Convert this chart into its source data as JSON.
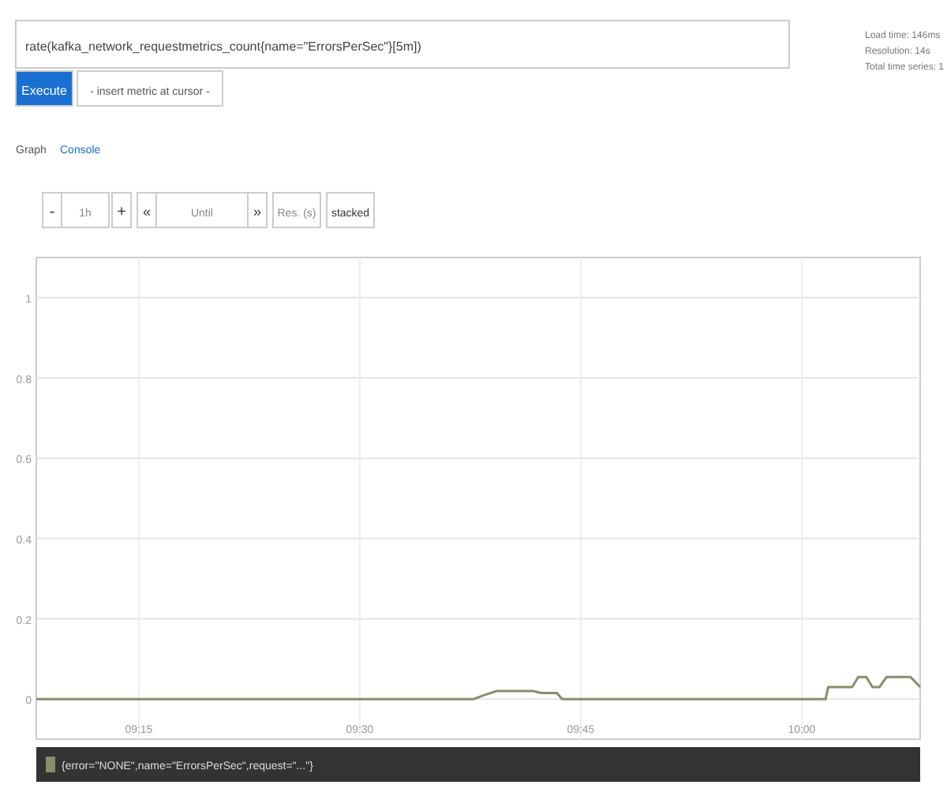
{
  "chart_data": {
    "type": "line",
    "title": "rate(kafka_network_requestmetrics_count{name=\"ErrorsPerSec\"}[5m])",
    "annotations": [
      "Execute",
      "- insert metric at cursor -",
      "Graph",
      "Console",
      "-",
      "1h",
      "+",
      "«",
      "Until",
      "»",
      "Res. (s)",
      "stacked",
      "Load time: 146ms",
      "Resolution: 14s",
      "Total time series: 1"
    ],
    "xlim": [
      9.134,
      10.134
    ],
    "xticks": [
      {
        "value": 9.25,
        "label": "09:15"
      },
      {
        "value": 9.5,
        "label": "09:30"
      },
      {
        "value": 9.75,
        "label": "09:45"
      },
      {
        "value": 10,
        "label": "10:00"
      }
    ],
    "ylim": [
      -0.1,
      1.1
    ],
    "yticks": [
      0,
      0.2,
      0.4,
      0.6,
      0.8,
      1
    ],
    "grid": true,
    "legend": "bottom",
    "marker": "none",
    "line_style": "solid",
    "series": [
      {
        "name": "{error=\"NONE\",name=\"ErrorsPerSec\",request=\"...\"}",
        "color": "#8b8b6e",
        "x": [
          9.134,
          9.629,
          9.641,
          9.655,
          9.696,
          9.705,
          9.723,
          9.729,
          10.027,
          10.03,
          10.057,
          10.064,
          10.073,
          10.08,
          10.088,
          10.096,
          10.123,
          10.134
        ],
        "values": [
          0,
          0,
          0.01,
          0.02,
          0.02,
          0.015,
          0.015,
          0,
          0,
          0.03,
          0.03,
          0.055,
          0.055,
          0.03,
          0.03,
          0.055,
          0.055,
          0.03
        ]
      }
    ]
  }
}
